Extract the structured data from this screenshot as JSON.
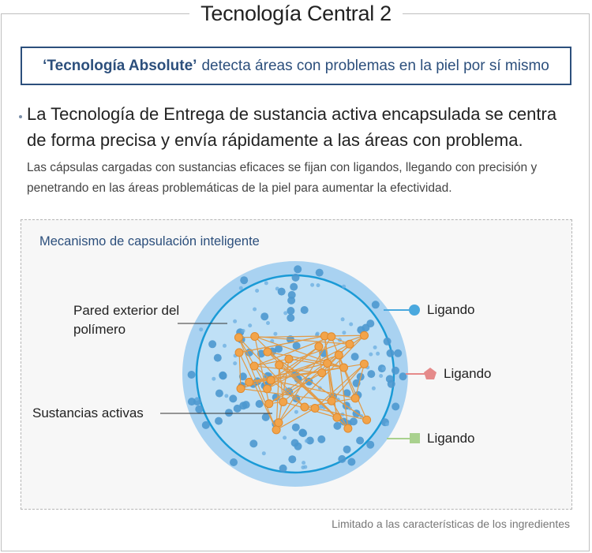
{
  "header": {
    "title": "Tecnología Central 2"
  },
  "banner": {
    "emphasis": "‘Tecnología Absolute’",
    "text": "detecta áreas con problemas en la piel por sí mismo"
  },
  "section": {
    "headline": "La Tecnología de Entrega de sustancia activa encapsulada se centra de forma precisa y envía rápidamente a las áreas con problema.",
    "description": "Las cápsulas cargadas con sustancias eficaces se fijan con ligandos, llegando con precisión y penetrando en las áreas problemáticas de la piel para aumentar la efectividad."
  },
  "diagram": {
    "title": "Mecanismo de capsulación inteligente",
    "labels": {
      "outer_wall": "Pared exterior del polímero",
      "active_substances": "Sustancias activas"
    },
    "ligands": [
      {
        "label": "Ligando",
        "shape": "circle-icon",
        "color": "#4aa8de"
      },
      {
        "label": "Ligando",
        "shape": "pentagon-icon",
        "color": "#e58a8a"
      },
      {
        "label": "Ligando",
        "shape": "square-icon",
        "color": "#a9d18e"
      }
    ],
    "colors": {
      "capsule_fill": "#a8d1f0",
      "capsule_ring": "#1a9ad6",
      "particle": "#4d98cf",
      "active": "#f0a040"
    }
  },
  "footnote": "Limitado a las características de los ingredientes"
}
